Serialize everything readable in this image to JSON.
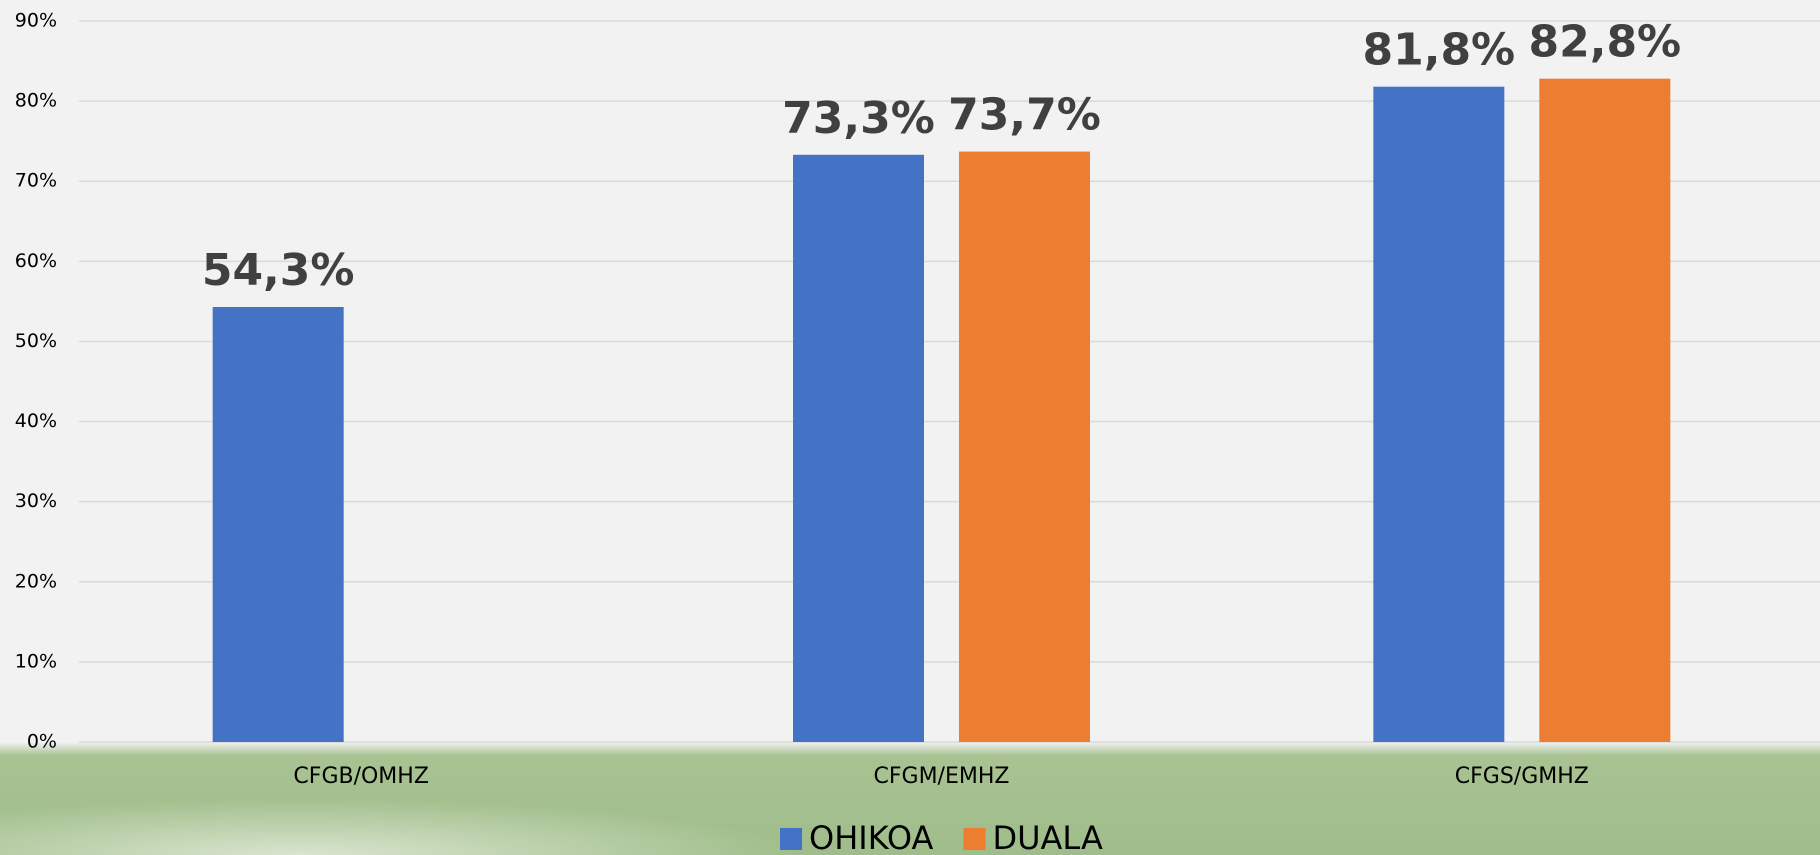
{
  "chart_data": {
    "type": "bar",
    "categories": [
      "CFGB/OMHZ",
      "CFGM/EMHZ",
      "CFGS/GMHZ"
    ],
    "series": [
      {
        "name": "OHIKOA",
        "color": "#4472c4",
        "values": [
          54.3,
          73.3,
          81.8
        ],
        "value_labels": [
          "54,3%",
          "73,3%",
          "81,8%"
        ]
      },
      {
        "name": "DUALA",
        "color": "#ed7d31",
        "values": [
          null,
          73.7,
          82.8
        ],
        "value_labels": [
          null,
          "73,7%",
          "82,8%"
        ]
      }
    ],
    "ylim": [
      0,
      90
    ],
    "yticks": [
      {
        "value": 0,
        "label": "0%"
      },
      {
        "value": 10,
        "label": "10%"
      },
      {
        "value": 20,
        "label": "20%"
      },
      {
        "value": 30,
        "label": "30%"
      },
      {
        "value": 40,
        "label": "40%"
      },
      {
        "value": 50,
        "label": "50%"
      },
      {
        "value": 60,
        "label": "60%"
      },
      {
        "value": 70,
        "label": "70%"
      },
      {
        "value": 80,
        "label": "80%"
      },
      {
        "value": 90,
        "label": "90%"
      }
    ],
    "grid": true,
    "legend": "bottom"
  }
}
